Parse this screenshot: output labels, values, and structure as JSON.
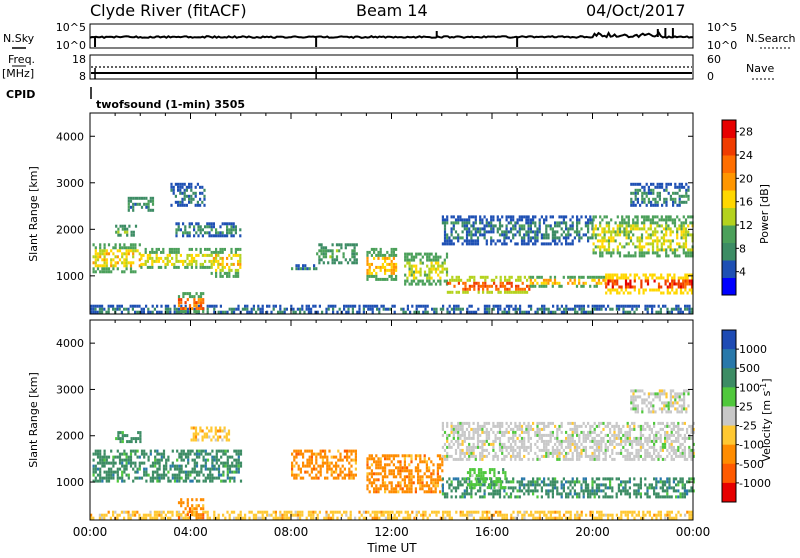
{
  "header": {
    "site": "Clyde River (fitACF)",
    "beam": "Beam 14",
    "date": "04/Oct/2017"
  },
  "mini_panels": {
    "nsky_label": "N.Sky",
    "nsearch_label": "N.Search",
    "freq_label_1": "Freq.",
    "freq_label_2": "[MHz]",
    "nave_label": "Nave",
    "cpid_label": "CPID",
    "cpid_value": "twofsound (1-min) 3505",
    "noise_left_ticks": [
      "10^5",
      "10^0"
    ],
    "noise_right_ticks": [
      "10^5",
      "10^0"
    ],
    "freq_left_ticks": [
      "18",
      "8"
    ],
    "freq_right_ticks": [
      "60",
      "0"
    ]
  },
  "chart_data": [
    {
      "type": "heatmap",
      "panel": "power",
      "xlabel": "Time UT",
      "ylabel": "Slant Range [km]",
      "x_ticks": [
        "00:00",
        "04:00",
        "08:00",
        "12:00",
        "16:00",
        "20:00",
        "00:00"
      ],
      "xlim_hours": [
        0,
        24
      ],
      "y_ticks": [
        1000,
        2000,
        3000,
        4000
      ],
      "ylim": [
        180,
        4500
      ],
      "colorbar": {
        "label": "Power [dB]",
        "ticks": [
          "4",
          "8",
          "12",
          "16",
          "20",
          "24",
          "28"
        ],
        "range": [
          0,
          30
        ],
        "colors": [
          "#0000ff",
          "#1e50b4",
          "#3c8c64",
          "#4ba05a",
          "#b4d21e",
          "#ffd700",
          "#ff9600",
          "#ff6e00",
          "#f03c00",
          "#e60000"
        ]
      },
      "regions": [
        {
          "t": [
            0.1,
            2.0
          ],
          "r": [
            1100,
            1700
          ],
          "v": 16,
          "v2": 10
        },
        {
          "t": [
            2.0,
            4.8
          ],
          "r": [
            1150,
            1600
          ],
          "v": 15,
          "v2": 9
        },
        {
          "t": [
            4.8,
            6.0
          ],
          "r": [
            1000,
            1600
          ],
          "v": 16,
          "v2": 10
        },
        {
          "t": [
            1.0,
            1.8
          ],
          "r": [
            1900,
            2100
          ],
          "v": 10,
          "v2": 6
        },
        {
          "t": [
            1.5,
            2.5
          ],
          "r": [
            2400,
            2700
          ],
          "v": 8,
          "v2": 6
        },
        {
          "t": [
            3.2,
            4.6
          ],
          "r": [
            2500,
            3000
          ],
          "v": 6,
          "v2": 4
        },
        {
          "t": [
            3.4,
            6.0
          ],
          "r": [
            1850,
            2150
          ],
          "v": 8,
          "v2": 5
        },
        {
          "t": [
            8.0,
            9.0
          ],
          "r": [
            1150,
            1250
          ],
          "v": 8,
          "v2": 5
        },
        {
          "t": [
            9.0,
            10.6
          ],
          "r": [
            1300,
            1700
          ],
          "v": 10,
          "v2": 7
        },
        {
          "t": [
            11.0,
            12.2
          ],
          "r": [
            900,
            1600
          ],
          "v": 18,
          "v2": 11
        },
        {
          "t": [
            12.5,
            14.2
          ],
          "r": [
            800,
            1500
          ],
          "v": 14,
          "v2": 9
        },
        {
          "t": [
            14.2,
            17.5
          ],
          "r": [
            650,
            1000
          ],
          "v": 24,
          "v2": 14
        },
        {
          "t": [
            17.5,
            20.5
          ],
          "r": [
            800,
            1000
          ],
          "v": 18,
          "v2": 10
        },
        {
          "t": [
            20.5,
            24.0
          ],
          "r": [
            650,
            1050
          ],
          "v": 26,
          "v2": 16
        },
        {
          "t": [
            14.0,
            20.0
          ],
          "r": [
            1700,
            2300
          ],
          "v": 7,
          "v2": 4
        },
        {
          "t": [
            20.0,
            24.0
          ],
          "r": [
            1400,
            2300
          ],
          "v": 14,
          "v2": 9
        },
        {
          "t": [
            21.5,
            23.8
          ],
          "r": [
            2500,
            3000
          ],
          "v": 8,
          "v2": 5
        },
        {
          "t": [
            0.0,
            24.0
          ],
          "r": [
            200,
            380
          ],
          "v": 6,
          "v2": 3
        },
        {
          "t": [
            3.5,
            4.5
          ],
          "r": [
            200,
            650
          ],
          "v": 22,
          "v2": 10
        }
      ]
    },
    {
      "type": "heatmap",
      "panel": "velocity",
      "xlabel": "Time UT",
      "ylabel": "Slant Range [km]",
      "x_ticks": [
        "00:00",
        "04:00",
        "08:00",
        "12:00",
        "16:00",
        "20:00",
        "00:00"
      ],
      "xlim_hours": [
        0,
        24
      ],
      "y_ticks": [
        1000,
        2000,
        3000,
        4000
      ],
      "ylim": [
        180,
        4500
      ],
      "colorbar": {
        "label": "Velocity [m s^-1]",
        "ticks": [
          "1000",
          "500",
          "100",
          "25",
          "-25",
          "-100",
          "-500",
          "-1000"
        ],
        "colors": [
          "#1e4bb4",
          "#2878aa",
          "#3c8c64",
          "#50c83c",
          "#c8c8c8",
          "#ffc832",
          "#ff8c00",
          "#ff5a00",
          "#e60000"
        ]
      },
      "regions": [
        {
          "t": [
            0.1,
            6.0
          ],
          "r": [
            1050,
            1700
          ],
          "v": 2
        },
        {
          "t": [
            1.0,
            2.0
          ],
          "r": [
            1900,
            2100
          ],
          "v": 2
        },
        {
          "t": [
            4.0,
            5.5
          ],
          "r": [
            1900,
            2200
          ],
          "v": 5
        },
        {
          "t": [
            8.0,
            10.6
          ],
          "r": [
            1100,
            1700
          ],
          "v": 6
        },
        {
          "t": [
            11.0,
            14.0
          ],
          "r": [
            800,
            1600
          ],
          "v": 6
        },
        {
          "t": [
            14.0,
            24.0
          ],
          "r": [
            650,
            1100
          ],
          "v": 2
        },
        {
          "t": [
            15.0,
            16.5
          ],
          "r": [
            900,
            1300
          ],
          "v": 3
        },
        {
          "t": [
            14.0,
            24.0
          ],
          "r": [
            1500,
            2300
          ],
          "v": 4
        },
        {
          "t": [
            21.5,
            23.8
          ],
          "r": [
            2500,
            3000
          ],
          "v": 4
        },
        {
          "t": [
            0.0,
            24.0
          ],
          "r": [
            200,
            380
          ],
          "v": 5
        },
        {
          "t": [
            3.5,
            4.5
          ],
          "r": [
            200,
            650
          ],
          "v": 6
        }
      ]
    }
  ]
}
